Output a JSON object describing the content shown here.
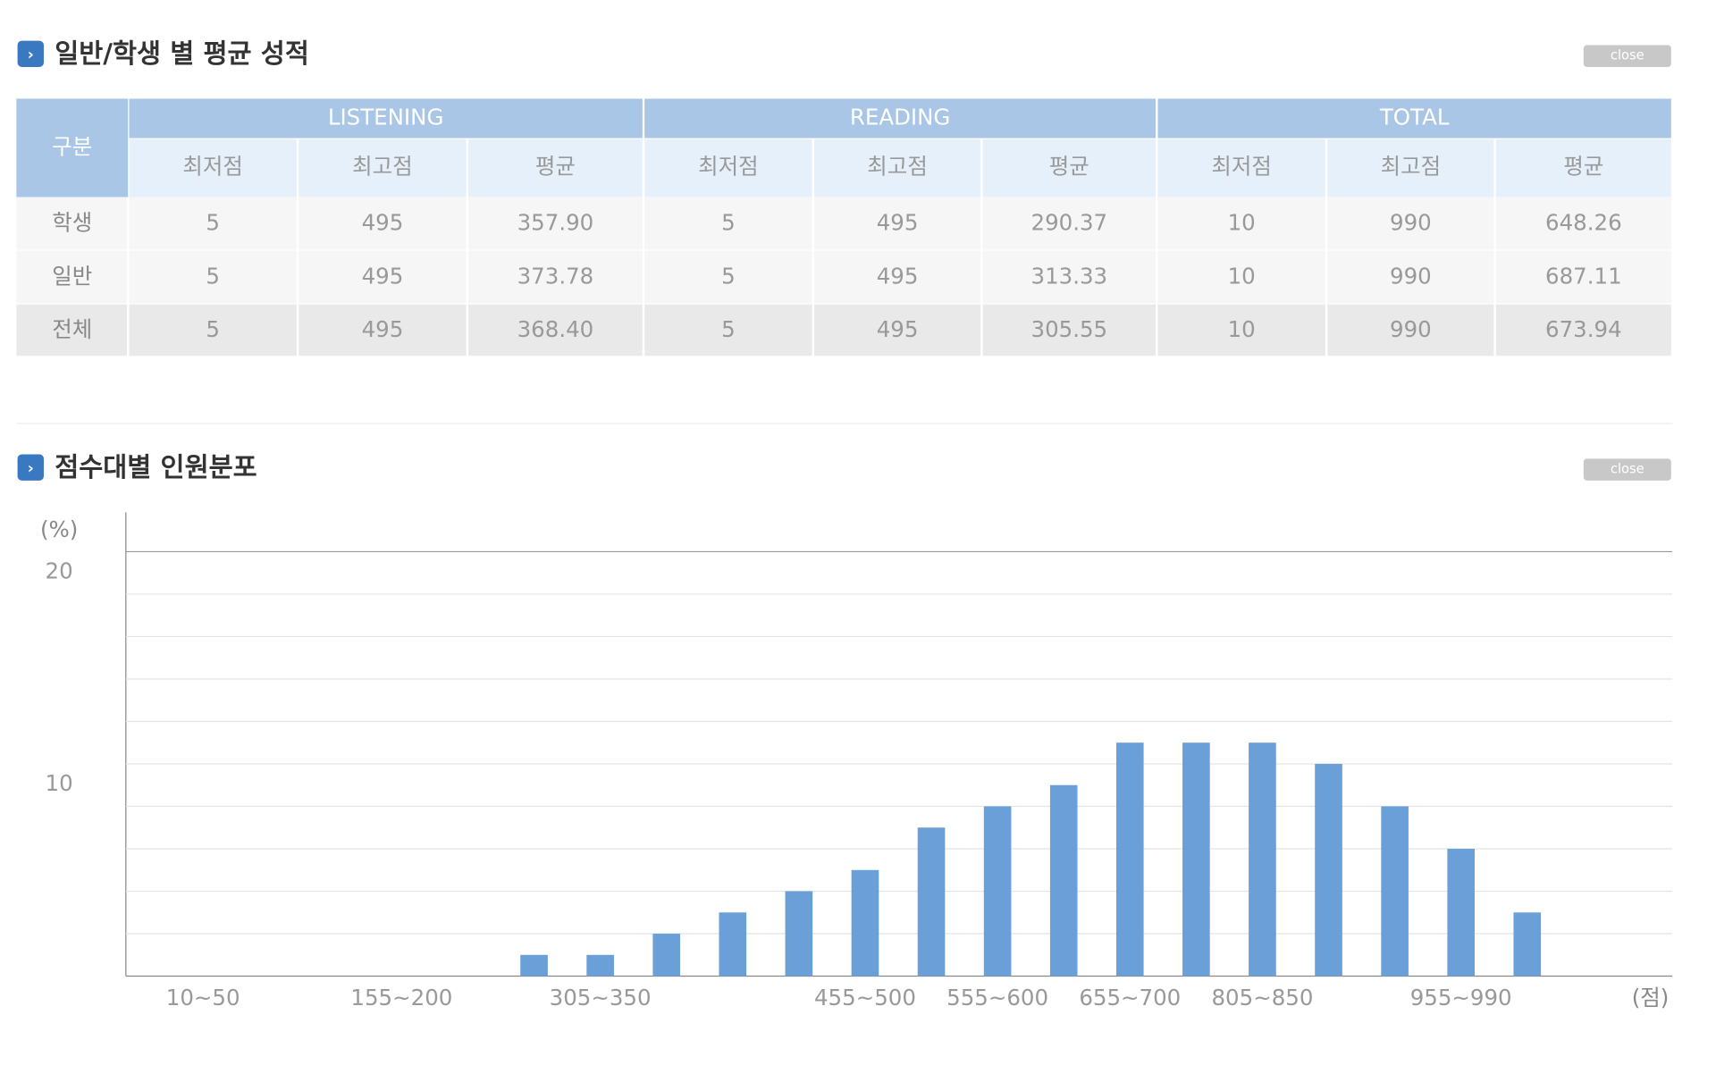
{
  "sections": [
    {
      "title": "일반/학생 별 평균 성적",
      "button": "close"
    },
    {
      "title": "점수대별 인원분포",
      "button": "close"
    }
  ],
  "table": {
    "corner": "구분",
    "groups": [
      "LISTENING",
      "READING",
      "TOTAL"
    ],
    "subheaders": [
      "최저점",
      "최고점",
      "평균"
    ],
    "rows": [
      [
        "학생",
        "5",
        "495",
        "357.90",
        "5",
        "495",
        "290.37",
        "10",
        "990",
        "648.26"
      ],
      [
        "일반",
        "5",
        "495",
        "373.78",
        "5",
        "495",
        "313.33",
        "10",
        "990",
        "687.11"
      ],
      [
        "전체",
        "5",
        "495",
        "368.40",
        "5",
        "495",
        "305.55",
        "10",
        "990",
        "673.94"
      ]
    ]
  },
  "chart_data": {
    "type": "bar",
    "y_unit_label": "(%)",
    "x_unit_label": "(점)",
    "categories": [
      null,
      "10~50",
      null,
      null,
      "155~200",
      null,
      null,
      "305~350",
      null,
      null,
      null,
      "455~500",
      null,
      "555~600",
      null,
      "655~700",
      null,
      "805~850",
      null,
      null,
      "955~990",
      null,
      null
    ],
    "values": [
      0,
      0,
      0,
      0,
      0,
      0,
      1,
      1,
      2,
      3,
      4,
      5,
      7,
      8,
      9,
      11,
      11,
      11,
      10,
      8,
      6,
      3,
      0
    ],
    "color": "#6a9fd8",
    "ylim": [
      0,
      20
    ],
    "yticks": [
      10,
      20
    ],
    "minor_yticks": [
      2,
      4,
      6,
      8,
      12,
      14,
      16,
      18
    ],
    "grid": true
  }
}
